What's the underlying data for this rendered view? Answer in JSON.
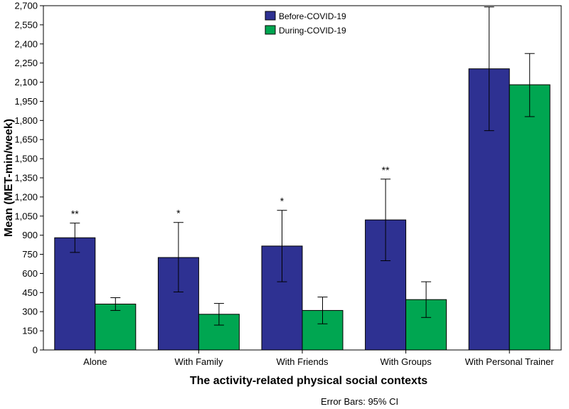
{
  "chart_data": {
    "type": "bar",
    "categories": [
      "Alone",
      "With Family",
      "With Friends",
      "With Groups",
      "With Personal Trainer"
    ],
    "series": [
      {
        "name": "Before-COVID-19",
        "color": "#2e3192",
        "values": [
          880,
          725,
          815,
          1020,
          2205
        ],
        "ci_low": [
          765,
          455,
          535,
          700,
          1720
        ],
        "ci_high": [
          995,
          1000,
          1095,
          1340,
          2690
        ]
      },
      {
        "name": "During-COVID-19",
        "color": "#00a651",
        "values": [
          360,
          280,
          310,
          395,
          2080
        ],
        "ci_low": [
          310,
          195,
          205,
          255,
          1830
        ],
        "ci_high": [
          410,
          365,
          415,
          535,
          2325
        ]
      }
    ],
    "significance": [
      "**",
      "*",
      "*",
      "**",
      ""
    ],
    "xlabel": "The activity-related physical social contexts",
    "ylabel": "Mean (MET-min/week)",
    "ylim": [
      0,
      2700
    ],
    "yticks": [
      0,
      150,
      300,
      450,
      600,
      750,
      900,
      1050,
      1200,
      1350,
      1500,
      1650,
      1800,
      1950,
      2100,
      2250,
      2400,
      2550,
      2700
    ],
    "ytick_labels": [
      "0",
      "150",
      "300",
      "450",
      "600",
      "750",
      "900",
      "1,050",
      "1,200",
      "1,350",
      "1,500",
      "1,650",
      "1,800",
      "1,950",
      "2,100",
      "2,250",
      "2,400",
      "2,550",
      "2,700"
    ],
    "legend_position": "top-center",
    "grid": false,
    "footnote": "Error Bars: 95% CI"
  }
}
